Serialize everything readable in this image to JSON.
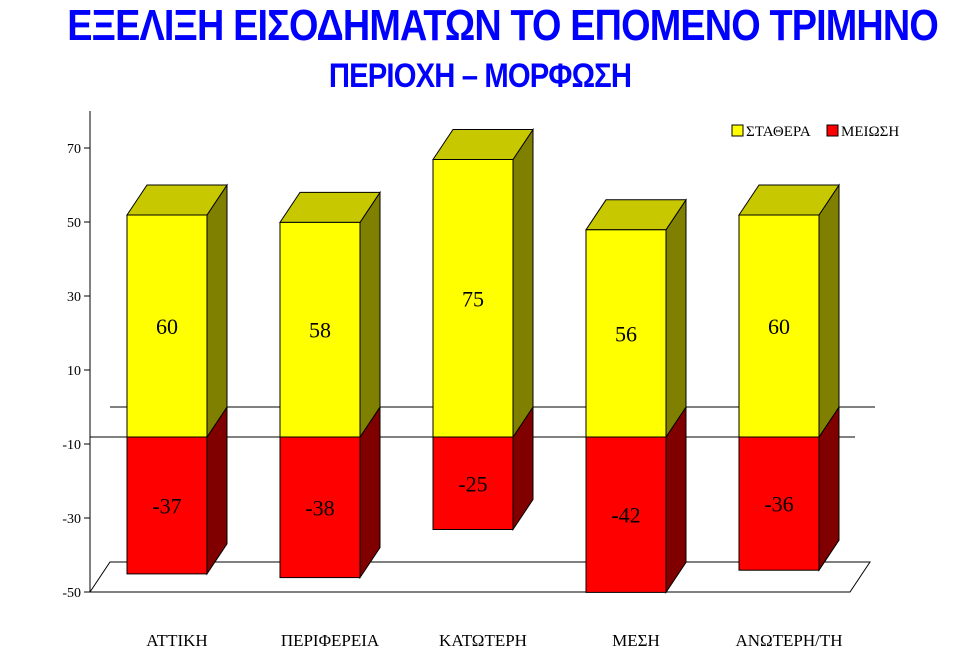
{
  "header": {
    "title": "ΕΞΕΛΙΞΗ ΕΙΣΟΔΗΜΑΤΩΝ ΤΟ ΕΠΟΜΕΝΟ ΤΡΙΜΗΝΟ",
    "subtitle": "ΠΕΡΙΟΧΗ – ΜΟΡΦΩΣΗ"
  },
  "chart_data": {
    "type": "bar",
    "stacked": true,
    "three_d": true,
    "categories": [
      "ΑΤΤΙΚΗ",
      "ΠΕΡΙΦΕΡΕΙΑ",
      "ΚΑΤΩΤΕΡΗ",
      "ΜΕΣΗ",
      "ΑΝΩΤΕΡΗ/ΤΗ"
    ],
    "series": [
      {
        "name": "ΣΤΑΘΕΡΑ",
        "values": [
          60,
          58,
          75,
          56,
          60
        ],
        "color": "#ffff00",
        "top_color": "#c8c800",
        "side_color": "#808000"
      },
      {
        "name": "ΜΕΙΩΣΗ",
        "values": [
          -37,
          -38,
          -25,
          -42,
          -36
        ],
        "color": "#ff0000",
        "side_color": "#800000"
      }
    ],
    "yticks": [
      70,
      50,
      30,
      10,
      -10,
      -30,
      -50
    ],
    "ylim": [
      -50,
      80
    ],
    "legend_position": "top-right",
    "grid": false
  }
}
